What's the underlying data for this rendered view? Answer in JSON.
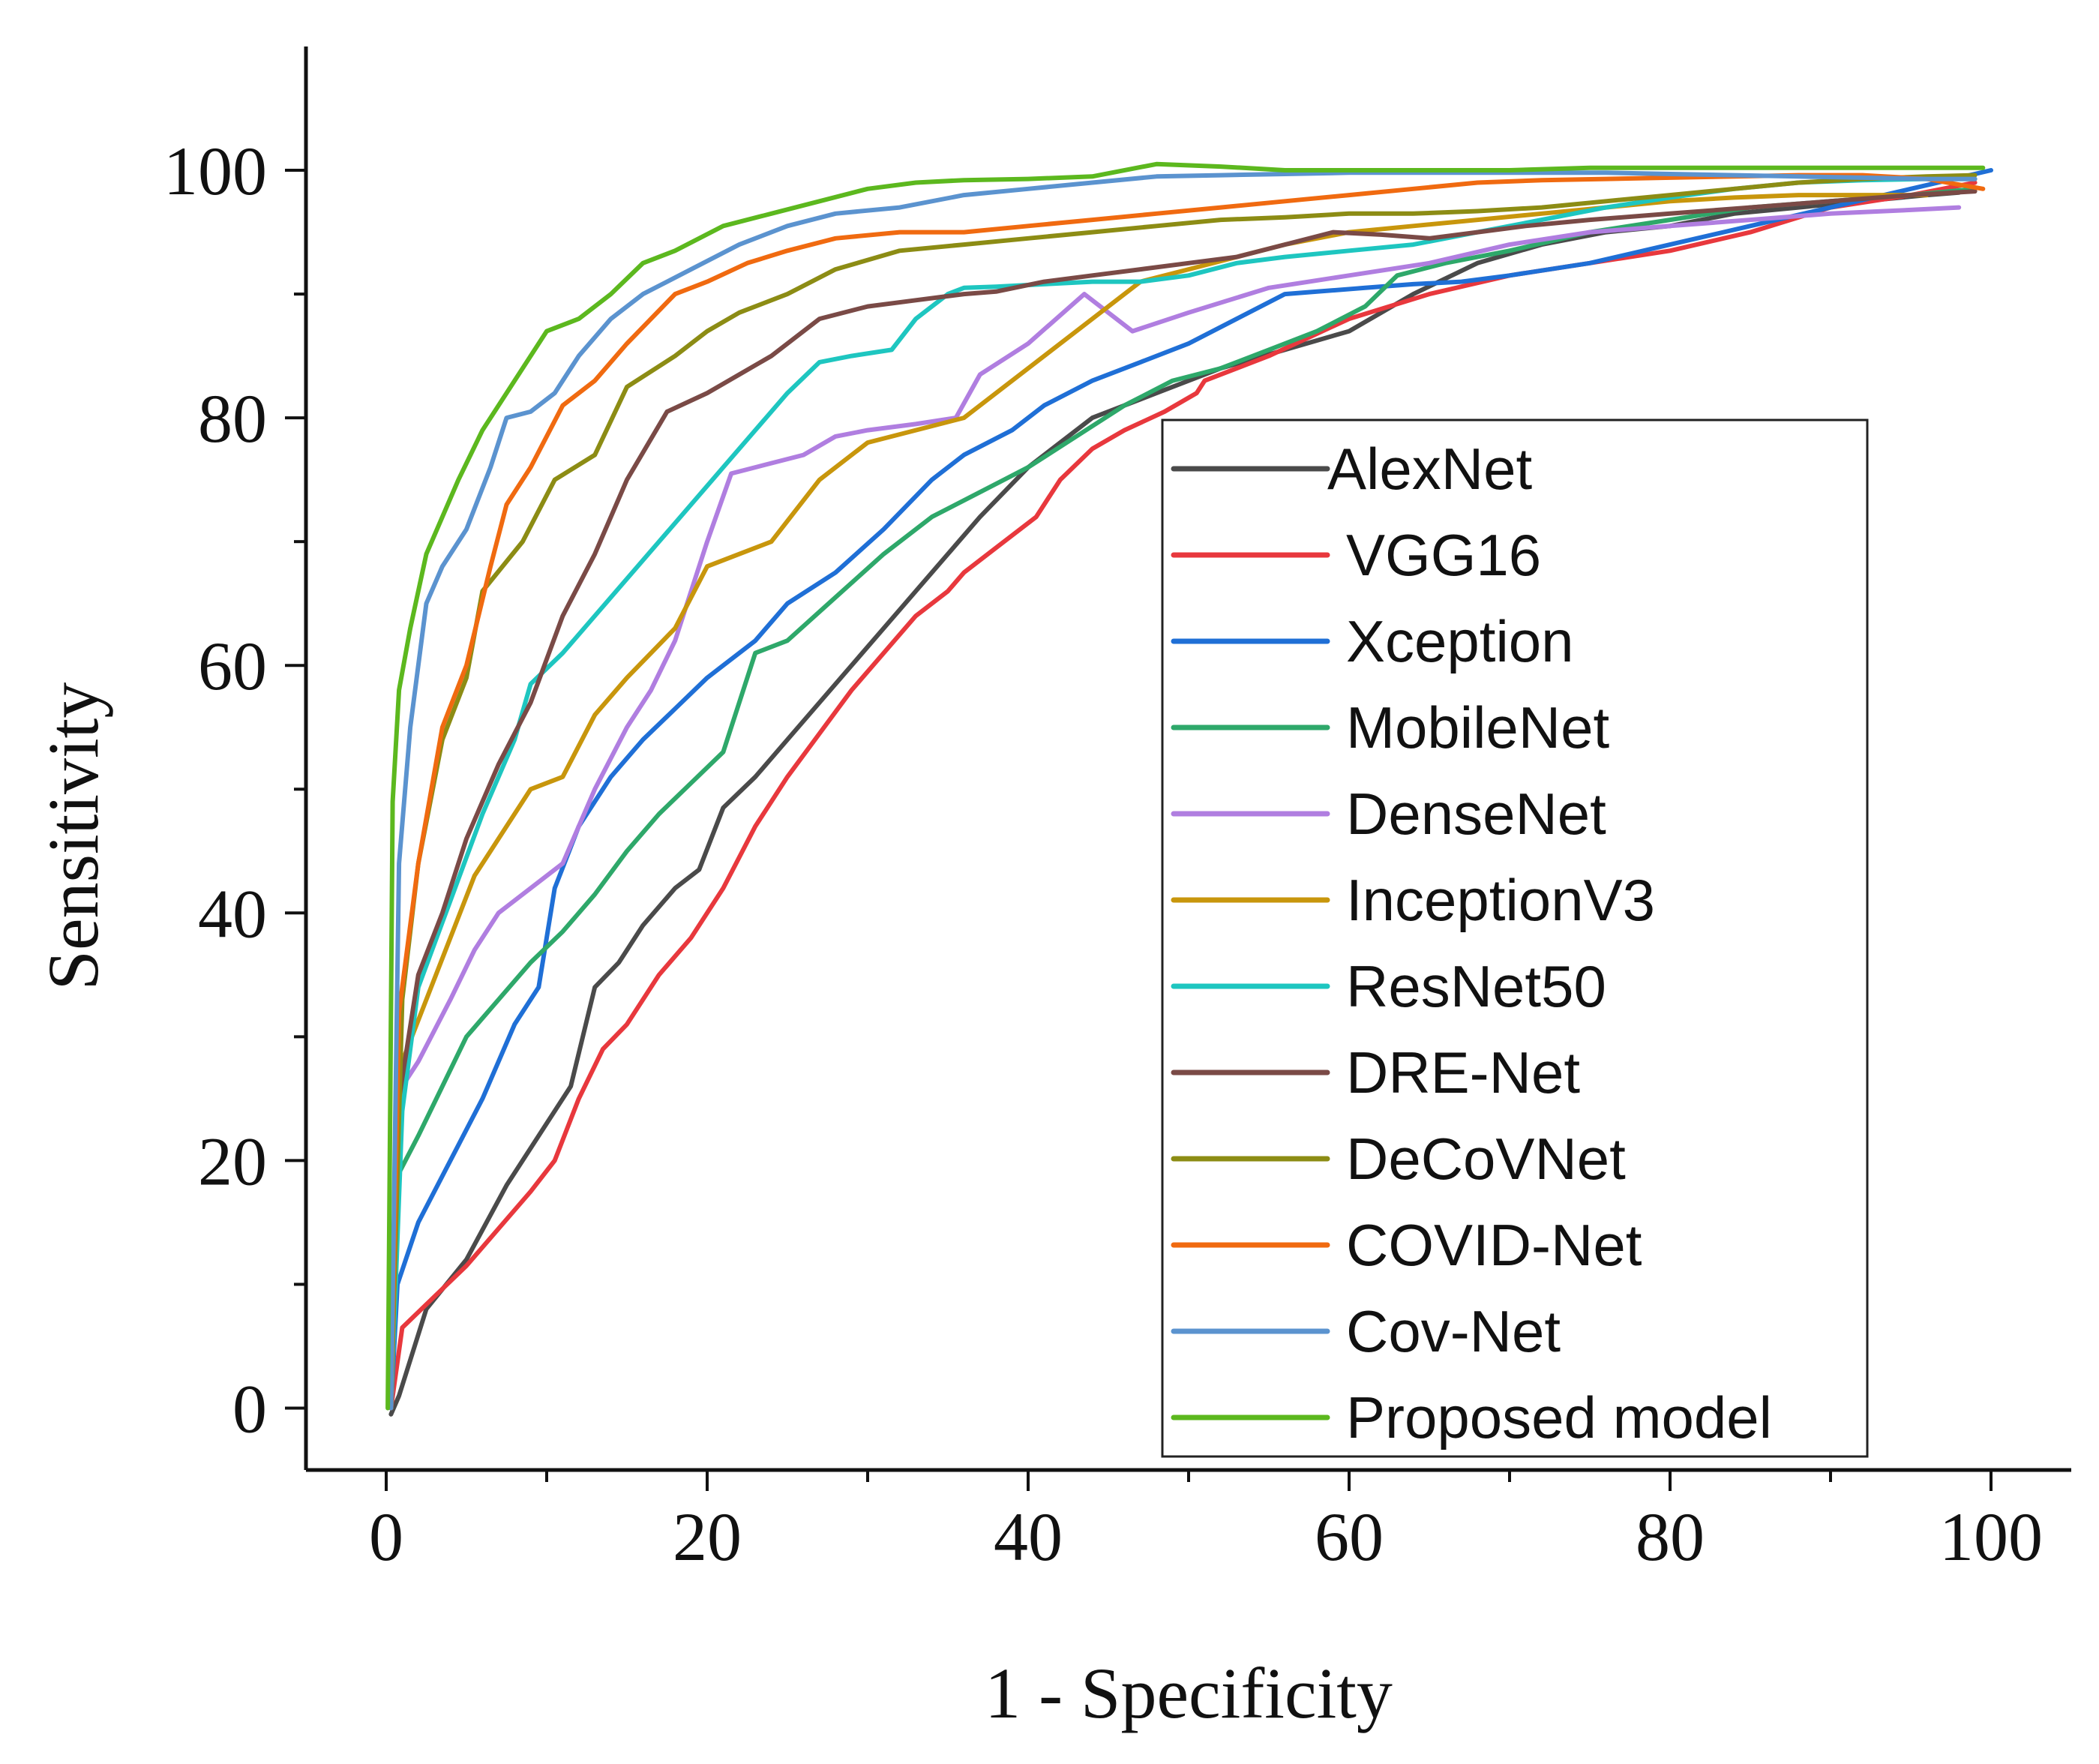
{
  "chart_data": {
    "type": "line",
    "title": "",
    "xlabel": "1 - Specificity",
    "ylabel": "Sensitivity",
    "xlim": [
      -5,
      105
    ],
    "ylim": [
      -5,
      110
    ],
    "xticks": [
      0,
      20,
      40,
      60,
      80,
      100
    ],
    "yticks": [
      0,
      20,
      40,
      60,
      80,
      100
    ],
    "grid": false,
    "legend_position": "bottom-right",
    "series": [
      {
        "name": "AlexNet",
        "color": "#4a4a4a",
        "x": [
          0.3,
          0.8,
          2.5,
          5,
          7.5,
          10,
          11.5,
          13,
          14.5,
          16,
          18,
          19.5,
          21,
          23,
          25,
          27,
          29,
          31,
          33,
          35,
          37,
          40,
          44,
          48,
          52,
          56,
          60,
          64,
          68,
          72,
          76,
          80,
          84,
          88,
          92,
          96,
          98
        ],
        "y": [
          -0.5,
          1,
          8,
          12,
          18,
          23,
          26,
          34,
          36,
          39,
          42,
          43.5,
          48.5,
          51,
          54,
          57,
          60,
          63,
          66,
          69,
          72,
          76,
          80,
          82,
          84,
          85.5,
          87,
          90,
          92.5,
          94,
          95,
          95.5,
          96.5,
          97,
          97.5,
          98,
          98.2
        ]
      },
      {
        "name": "VGG16",
        "color": "#e8383d",
        "x": [
          0.3,
          1,
          3,
          5,
          7,
          9,
          10.5,
          12,
          13.5,
          15,
          17,
          19,
          21,
          23,
          25,
          27,
          29,
          31,
          33,
          35,
          36,
          38,
          40.5,
          42,
          44,
          46,
          48.5,
          50.5,
          51,
          55,
          60,
          65,
          70,
          75,
          80,
          85,
          90,
          95,
          99
        ],
        "y": [
          0,
          6.5,
          9,
          11.5,
          14.5,
          17.5,
          20,
          25,
          29,
          31,
          35,
          38,
          42,
          47,
          51,
          54.5,
          58,
          61,
          64,
          66,
          67.5,
          69.5,
          72,
          75,
          77.5,
          79,
          80.5,
          82,
          83,
          85,
          88,
          90,
          91.5,
          92.5,
          93.5,
          95,
          97,
          98,
          99
        ]
      },
      {
        "name": "Xception",
        "color": "#1f6fd6",
        "x": [
          0.3,
          0.7,
          2,
          4,
          6,
          8,
          9.5,
          10.5,
          12,
          14,
          16,
          18,
          20,
          23,
          25,
          28,
          31,
          34,
          36,
          39,
          41,
          44,
          47,
          50,
          53,
          56,
          58,
          61,
          64,
          67,
          70,
          75,
          80,
          85,
          90,
          95,
          100
        ],
        "y": [
          0,
          10,
          15,
          20,
          25,
          31,
          34,
          42,
          47,
          51,
          54,
          56.5,
          59,
          62,
          65,
          67.5,
          71,
          75,
          77,
          79,
          81,
          83,
          84.5,
          86,
          88,
          90,
          90.2,
          90.5,
          90.8,
          91,
          91.5,
          92.5,
          94,
          95.5,
          97,
          98.5,
          100
        ]
      },
      {
        "name": "MobileNet",
        "color": "#2ea86a",
        "x": [
          0.3,
          0.8,
          2,
          3.5,
          5,
          7,
          9,
          11,
          13,
          15,
          17,
          19,
          21,
          23,
          25,
          28,
          31,
          34,
          37,
          40,
          43,
          46,
          49,
          52,
          55,
          58,
          61,
          63,
          66,
          70,
          75,
          80,
          85,
          90,
          95,
          99
        ],
        "y": [
          0,
          19,
          22,
          26,
          30,
          33,
          36,
          38.5,
          41.5,
          45,
          48,
          50.5,
          53,
          61,
          62,
          65.5,
          69,
          72,
          74,
          76,
          78.5,
          81,
          83,
          84,
          85.5,
          87,
          89,
          91.5,
          92.5,
          93.5,
          95,
          96,
          97,
          97.5,
          98,
          98.5
        ]
      },
      {
        "name": "DenseNet",
        "color": "#b07ee0",
        "x": [
          0.3,
          1,
          2,
          4,
          5.5,
          7,
          9,
          11,
          13,
          15,
          16.5,
          18,
          20,
          21.5,
          23,
          26,
          28,
          30,
          33,
          35.5,
          37,
          40,
          43.5,
          46.5,
          50,
          55,
          60,
          65,
          70,
          75,
          80,
          85,
          90,
          95,
          98
        ],
        "y": [
          0,
          26,
          28,
          33,
          37,
          40,
          42,
          44,
          50,
          55,
          58,
          62,
          70,
          75.5,
          76,
          77,
          78.5,
          79,
          79.5,
          80,
          83.5,
          86,
          90,
          87,
          88.5,
          90.5,
          91.5,
          92.5,
          94,
          95,
          95.5,
          96,
          96.5,
          96.8,
          97
        ]
      },
      {
        "name": "InceptionV3",
        "color": "#c8960c",
        "x": [
          0.3,
          1,
          2.5,
          4,
          5.5,
          7,
          9,
          11,
          13,
          15,
          18,
          20,
          22,
          24,
          27,
          30,
          33,
          36,
          40,
          43,
          47,
          50,
          53,
          56,
          60,
          64,
          68,
          72,
          76,
          80,
          84,
          88,
          92,
          96
        ],
        "y": [
          0,
          28,
          33,
          38,
          43,
          46,
          50,
          51,
          56,
          59,
          63,
          68,
          69,
          70,
          75,
          78,
          79,
          80,
          84,
          87,
          91,
          92,
          93,
          94,
          95,
          95.5,
          96,
          96.5,
          97,
          97.5,
          97.8,
          98,
          98,
          98
        ]
      },
      {
        "name": "ResNet50",
        "color": "#1ec6c0",
        "x": [
          0.3,
          1,
          2,
          4,
          6,
          8,
          9,
          11,
          13,
          15,
          17,
          19,
          21,
          23,
          25,
          27,
          29,
          31.5,
          33,
          35,
          36,
          38,
          41,
          44,
          47,
          50,
          53,
          56,
          60,
          64,
          68,
          72,
          76,
          80,
          84,
          88,
          92,
          96,
          99
        ],
        "y": [
          0,
          24,
          34,
          41,
          48,
          54,
          58.5,
          61,
          64,
          67,
          70,
          73,
          76,
          79,
          82,
          84.5,
          85,
          85.5,
          88,
          90,
          90.5,
          90.6,
          90.8,
          91,
          91,
          91.5,
          92.5,
          93,
          93.5,
          94,
          95,
          96,
          97,
          97.8,
          98.5,
          99,
          99.2,
          99.3,
          99.3
        ]
      },
      {
        "name": "DRE-Net",
        "color": "#7a4a46",
        "x": [
          0.3,
          0.8,
          2,
          3.5,
          5,
          7,
          9,
          11,
          13,
          15,
          17.5,
          20,
          22,
          24,
          27,
          30,
          33,
          36,
          38,
          41,
          44,
          47,
          50,
          53,
          56,
          59,
          62,
          65,
          68,
          71,
          75,
          80,
          85,
          90,
          95,
          99
        ],
        "y": [
          0,
          25,
          35,
          40,
          46,
          52,
          57,
          64,
          69,
          75,
          80.5,
          82,
          83.5,
          85,
          88,
          89,
          89.5,
          90,
          90.2,
          91,
          91.5,
          92,
          92.5,
          93,
          94,
          95,
          94.8,
          94.5,
          95,
          95.5,
          96,
          96.5,
          97,
          97.5,
          98,
          98.3
        ]
      },
      {
        "name": "DeCoVNet",
        "color": "#8c8c14",
        "x": [
          0.3,
          1,
          2,
          3.5,
          5,
          6,
          8.5,
          10.5,
          13,
          15,
          18,
          20,
          22,
          25,
          28,
          32,
          36,
          40,
          44,
          48,
          52,
          56,
          60,
          64,
          68,
          72,
          76,
          80,
          84,
          88,
          92,
          96,
          99
        ],
        "y": [
          0,
          33,
          44,
          54,
          59,
          66,
          70,
          75,
          77,
          82.5,
          85,
          87,
          88.5,
          90,
          92,
          93.5,
          94,
          94.5,
          95,
          95.5,
          96,
          96.2,
          96.5,
          96.5,
          96.7,
          97,
          97.5,
          98,
          98.5,
          99,
          99.3,
          99.5,
          99.6
        ]
      },
      {
        "name": "COVID-Net",
        "color": "#f06a10",
        "x": [
          0.3,
          0.8,
          2,
          3.5,
          5,
          6.5,
          7.5,
          9,
          11,
          13,
          15,
          18,
          20,
          22.5,
          25,
          28,
          32,
          36,
          40,
          44,
          48,
          52,
          56,
          60,
          64,
          68,
          72,
          76,
          80,
          84,
          88,
          92,
          96,
          99.5
        ],
        "y": [
          0,
          32,
          44,
          55,
          60,
          68,
          73,
          76,
          81,
          83,
          86,
          90,
          91,
          92.5,
          93.5,
          94.5,
          95,
          95,
          95.5,
          96,
          96.5,
          97,
          97.5,
          98,
          98.5,
          99,
          99.2,
          99.3,
          99.4,
          99.5,
          99.6,
          99.6,
          99.3,
          98.5
        ]
      },
      {
        "name": "Cov-Net",
        "color": "#5b93cf",
        "x": [
          0.3,
          0.8,
          1.5,
          2.5,
          3.5,
          5,
          6.5,
          7.5,
          9,
          10.5,
          12,
          14,
          16,
          19,
          22,
          25,
          28,
          32,
          36,
          40,
          44,
          48,
          52,
          56,
          60,
          64,
          68,
          72,
          76,
          80,
          84,
          88,
          92,
          96,
          99
        ],
        "y": [
          0,
          44,
          55,
          65,
          68,
          71,
          76,
          80,
          80.5,
          82,
          85,
          88,
          90,
          92,
          94,
          95.5,
          96.5,
          97,
          98,
          98.5,
          99,
          99.5,
          99.6,
          99.7,
          99.8,
          99.8,
          99.8,
          99.8,
          99.8,
          99.7,
          99.6,
          99.5,
          99.4,
          99.3,
          99.3
        ]
      },
      {
        "name": "Proposed model",
        "color": "#5cb81e",
        "x": [
          0.1,
          0.4,
          0.8,
          1.5,
          2.5,
          3.5,
          4.5,
          6,
          7.5,
          9,
          10,
          12,
          14,
          16,
          18,
          21,
          24,
          27,
          30,
          33,
          36,
          40,
          44,
          48,
          52,
          56,
          60,
          65,
          70,
          75,
          80,
          85,
          90,
          95,
          99.5
        ],
        "y": [
          0,
          49,
          58,
          63,
          69,
          72,
          75,
          79,
          82,
          85,
          87,
          88,
          90,
          92.5,
          93.5,
          95.5,
          96.5,
          97.5,
          98.5,
          99,
          99.2,
          99.3,
          99.5,
          100.5,
          100.3,
          100,
          100,
          100,
          100,
          100.2,
          100.2,
          100.2,
          100.2,
          100.2,
          100.2
        ]
      }
    ]
  }
}
